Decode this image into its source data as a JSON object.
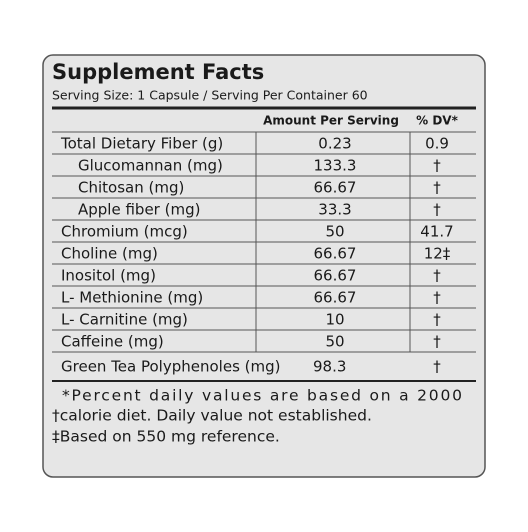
{
  "header": {
    "title": "Supplement Facts",
    "serving": "Serving Size: 1 Capsule / Serving Per Container 60"
  },
  "table": {
    "columns": [
      "Amount Per Serving",
      "% DV*"
    ],
    "rows": [
      [
        "Total Dietary Fiber (g)",
        "0.23",
        "0.9"
      ],
      [
        "Glucomannan (mg)",
        "133.3",
        "†"
      ],
      [
        "Chitosan (mg)",
        "66.67",
        "†"
      ],
      [
        "Apple fiber (mg)",
        "33.3",
        "†"
      ],
      [
        "Chromium (mcg)",
        "50",
        "41.7"
      ],
      [
        "Choline (mg)",
        "66.67",
        "12‡"
      ],
      [
        "Inositol (mg)",
        "66.67",
        "†"
      ],
      [
        "L- Methionine (mg)",
        "66.67",
        "†"
      ],
      [
        "L- Carnitine (mg)",
        "10",
        "†"
      ],
      [
        "Caffeine (mg)",
        "50",
        "†"
      ],
      [
        "Green Tea Polyphenoles (mg)",
        "98.3",
        "†"
      ]
    ]
  },
  "footnotes": [
    "*Percent daily values are based on a 2000",
    "†calorie diet. Daily value not established.",
    "‡Based on 550 mg reference."
  ]
}
